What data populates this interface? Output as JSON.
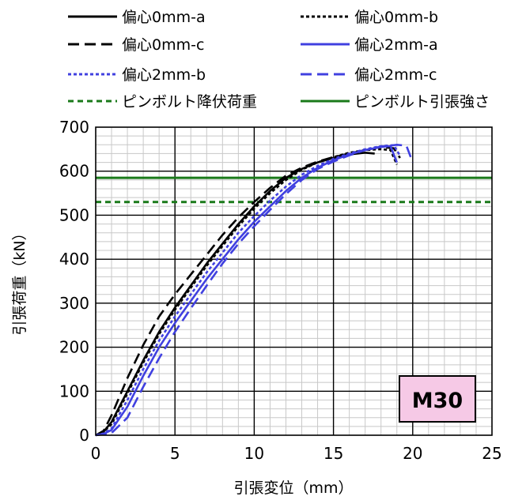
{
  "chart_data": {
    "type": "line",
    "xlabel": "引張変位（mm）",
    "ylabel": "引張荷重（kN）",
    "xlim": [
      0,
      25
    ],
    "ylim": [
      0,
      700
    ],
    "x_ticks": [
      "0",
      "5",
      "10",
      "15",
      "20",
      "25"
    ],
    "y_ticks": [
      "0",
      "100",
      "200",
      "300",
      "400",
      "500",
      "600",
      "700"
    ],
    "grid": true,
    "minor_grid": true,
    "legend_position": "top",
    "annotation": "M30",
    "series": [
      {
        "name": "偏心0mm-a",
        "color": "#000000",
        "dash": "solid",
        "points": [
          [
            0,
            0
          ],
          [
            0.5,
            8
          ],
          [
            1,
            30
          ],
          [
            2,
            100
          ],
          [
            3,
            170
          ],
          [
            4,
            235
          ],
          [
            5,
            290
          ],
          [
            6,
            340
          ],
          [
            7,
            390
          ],
          [
            8,
            435
          ],
          [
            9,
            480
          ],
          [
            10,
            520
          ],
          [
            11,
            555
          ],
          [
            12,
            585
          ],
          [
            13,
            605
          ],
          [
            14,
            620
          ],
          [
            15,
            630
          ],
          [
            16,
            638
          ],
          [
            17,
            642
          ],
          [
            17.6,
            640
          ]
        ]
      },
      {
        "name": "偏心0mm-b",
        "color": "#000000",
        "dash": "dotted",
        "points": [
          [
            0,
            0
          ],
          [
            0.5,
            8
          ],
          [
            1,
            25
          ],
          [
            2,
            95
          ],
          [
            3,
            165
          ],
          [
            4,
            230
          ],
          [
            5,
            285
          ],
          [
            6,
            335
          ],
          [
            7,
            385
          ],
          [
            8,
            430
          ],
          [
            9,
            475
          ],
          [
            10,
            515
          ],
          [
            11,
            550
          ],
          [
            12,
            580
          ],
          [
            13,
            603
          ],
          [
            14,
            620
          ],
          [
            15,
            632
          ],
          [
            16,
            642
          ],
          [
            17,
            648
          ],
          [
            18,
            650
          ],
          [
            18.6,
            648
          ],
          [
            19,
            615
          ]
        ]
      },
      {
        "name": "偏心0mm-c",
        "color": "#000000",
        "dash": "long-dash",
        "points": [
          [
            0,
            0
          ],
          [
            0.5,
            10
          ],
          [
            1,
            45
          ],
          [
            2,
            130
          ],
          [
            3,
            205
          ],
          [
            4,
            270
          ],
          [
            5,
            320
          ],
          [
            6,
            365
          ],
          [
            7,
            410
          ],
          [
            8,
            455
          ],
          [
            9,
            495
          ],
          [
            10,
            530
          ],
          [
            11,
            562
          ],
          [
            12,
            590
          ],
          [
            13,
            608
          ],
          [
            14,
            622
          ],
          [
            15,
            632
          ],
          [
            16,
            640
          ],
          [
            17,
            648
          ],
          [
            18,
            655
          ],
          [
            18.8,
            652
          ],
          [
            19.2,
            630
          ]
        ]
      },
      {
        "name": "偏心2mm-a",
        "color": "#4040e0",
        "dash": "solid",
        "points": [
          [
            0,
            0
          ],
          [
            0.5,
            3
          ],
          [
            1,
            12
          ],
          [
            2,
            65
          ],
          [
            3,
            135
          ],
          [
            4,
            200
          ],
          [
            5,
            255
          ],
          [
            6,
            305
          ],
          [
            7,
            355
          ],
          [
            8,
            400
          ],
          [
            9,
            445
          ],
          [
            10,
            485
          ],
          [
            11,
            520
          ],
          [
            12,
            555
          ],
          [
            13,
            585
          ],
          [
            14,
            608
          ],
          [
            15,
            625
          ],
          [
            16,
            638
          ],
          [
            17,
            648
          ],
          [
            18,
            655
          ],
          [
            18.6,
            657
          ],
          [
            19,
            620
          ]
        ]
      },
      {
        "name": "偏心2mm-b",
        "color": "#4040e0",
        "dash": "dotted",
        "points": [
          [
            0,
            0
          ],
          [
            0.5,
            4
          ],
          [
            1,
            15
          ],
          [
            2,
            80
          ],
          [
            3,
            150
          ],
          [
            4,
            215
          ],
          [
            5,
            270
          ],
          [
            6,
            320
          ],
          [
            7,
            370
          ],
          [
            8,
            415
          ],
          [
            9,
            460
          ],
          [
            10,
            498
          ],
          [
            11,
            533
          ],
          [
            12,
            565
          ],
          [
            13,
            592
          ],
          [
            14,
            612
          ],
          [
            15,
            628
          ],
          [
            16,
            640
          ],
          [
            17,
            650
          ],
          [
            18,
            657
          ],
          [
            18.8,
            659
          ],
          [
            19.2,
            635
          ]
        ]
      },
      {
        "name": "偏心2mm-c",
        "color": "#4040e0",
        "dash": "long-dash",
        "points": [
          [
            0,
            0
          ],
          [
            0.5,
            2
          ],
          [
            1,
            5
          ],
          [
            2,
            40
          ],
          [
            3,
            110
          ],
          [
            4,
            175
          ],
          [
            5,
            235
          ],
          [
            6,
            288
          ],
          [
            7,
            340
          ],
          [
            8,
            390
          ],
          [
            9,
            435
          ],
          [
            10,
            475
          ],
          [
            11,
            512
          ],
          [
            12,
            548
          ],
          [
            13,
            580
          ],
          [
            14,
            605
          ],
          [
            15,
            622
          ],
          [
            16,
            636
          ],
          [
            17,
            648
          ],
          [
            18,
            656
          ],
          [
            19,
            660
          ],
          [
            19.6,
            658
          ],
          [
            20,
            620
          ]
        ]
      },
      {
        "name": "ピンボルト降伏荷重",
        "color": "#1a7a1a",
        "dash": "short-dash",
        "points": [
          [
            0,
            530
          ],
          [
            25,
            530
          ]
        ]
      },
      {
        "name": "ピンボルト引張強さ",
        "color": "#1a7a1a",
        "dash": "solid",
        "points": [
          [
            0,
            585
          ],
          [
            25,
            585
          ]
        ]
      }
    ]
  }
}
